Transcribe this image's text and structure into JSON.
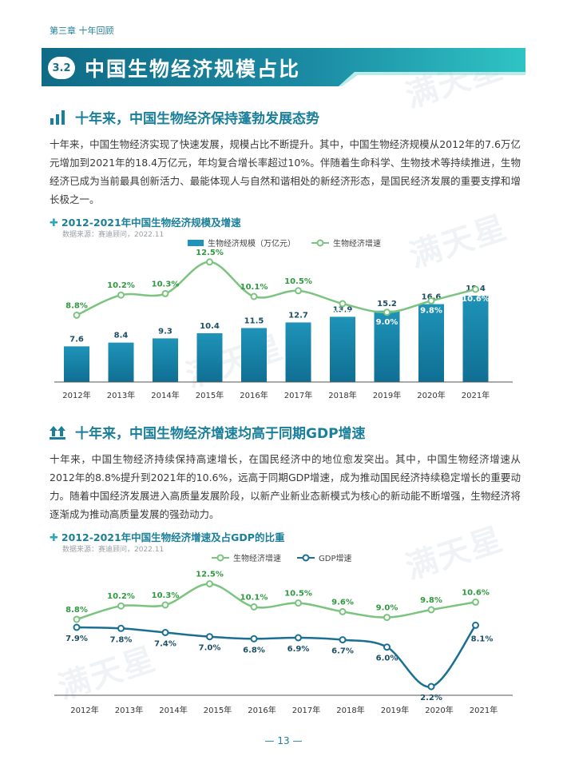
{
  "chapter": "第三章 十年回顾",
  "section": {
    "number": "3.2",
    "title": "中国生物经济规模占比"
  },
  "watermark": "满天星",
  "sub1": {
    "title": "十年来，中国生物经济保持蓬勃发展态势",
    "paragraph": "十年来，中国生物经济实现了快速发展，规模占比不断提升。其中，中国生物经济规模从2012年的7.6万亿元增加到2021年的18.4万亿元，年均复合增长率超过10%。伴随着生命科学、生物技术等持续推进，生物经济已成为当前最具创新活力、最能体现人与自然和谐相处的新经济形态，是国民经济发展的重要支撑和增长极之一。"
  },
  "chart1": {
    "title": "2012-2021年中国生物经济规模及增速",
    "source": "数据来源：赛迪顾问，2022.11"
  },
  "sub2": {
    "title": "十年来，中国生物经济增速均高于同期GDP增速",
    "paragraph": "十年来，中国生物经济持续保持高速增长，在国民经济中的地位愈发突出。其中，中国生物经济增速从2012年的8.8%提升到2021年的10.6%，远高于同期GDP增速，成为推动国民经济持续稳定增长的重要动力。随着中国经济发展进入高质量发展阶段，以新产业新业态新模式为核心的新动能不断增强，生物经济将逐渐成为推动高质量发展的强劲动力。"
  },
  "chart2": {
    "title": "2012-2021年中国生物经济增速及占GDP的比重",
    "source": "数据来源：赛迪顾问，2022.11"
  },
  "page_number": "— 13 —",
  "chart_data": [
    {
      "type": "bar",
      "categories": [
        "2012年",
        "2013年",
        "2014年",
        "2015年",
        "2016年",
        "2017年",
        "2018年",
        "2019年",
        "2020年",
        "2021年"
      ],
      "series": [
        {
          "name": "生物经济规模（万亿元）",
          "type": "bar",
          "values": [
            7.6,
            8.4,
            9.3,
            10.4,
            11.5,
            12.7,
            13.9,
            15.2,
            16.6,
            18.4
          ],
          "labels": [
            "7.6",
            "8.4",
            "9.3",
            "10.4",
            "11.5",
            "12.7",
            "13.9",
            "15.2",
            "16.6",
            "18.4"
          ]
        },
        {
          "name": "生物经济增速",
          "type": "line",
          "values": [
            8.8,
            10.2,
            10.3,
            12.5,
            10.1,
            10.5,
            9.6,
            9.0,
            9.8,
            10.6
          ],
          "labels": [
            "8.8%",
            "10.2%",
            "10.3%",
            "12.5%",
            "10.1%",
            "10.5%",
            "9.6%",
            "9.0%",
            "9.8%",
            "10.6%"
          ]
        }
      ],
      "colors": {
        "bar_top": "#1f93b8",
        "bar_bottom": "#0f6f93",
        "line": "#7bc47f"
      },
      "legend_position": "top-center",
      "grid": false
    },
    {
      "type": "line",
      "categories": [
        "2012年",
        "2013年",
        "2014年",
        "2015年",
        "2016年",
        "2017年",
        "2018年",
        "2019年",
        "2020年",
        "2021年"
      ],
      "series": [
        {
          "name": "生物经济增速",
          "values": [
            8.8,
            10.2,
            10.3,
            12.5,
            10.1,
            10.5,
            9.6,
            9.0,
            9.8,
            10.6
          ],
          "labels": [
            "8.8%",
            "10.2%",
            "10.3%",
            "12.5%",
            "10.1%",
            "10.5%",
            "9.6%",
            "9.0%",
            "9.8%",
            "10.6%"
          ]
        },
        {
          "name": "GDP增速",
          "values": [
            7.9,
            7.8,
            7.4,
            7.0,
            6.8,
            6.9,
            6.7,
            6.0,
            2.2,
            8.1
          ],
          "labels": [
            "7.9%",
            "7.8%",
            "7.4%",
            "7.0%",
            "6.8%",
            "6.9%",
            "6.7%",
            "6.0%",
            "2.2%",
            "8.1%"
          ]
        }
      ],
      "colors": {
        "bio": "#7bc47f",
        "gdp": "#1a6f93"
      },
      "legend_position": "top-center",
      "grid": false
    }
  ]
}
